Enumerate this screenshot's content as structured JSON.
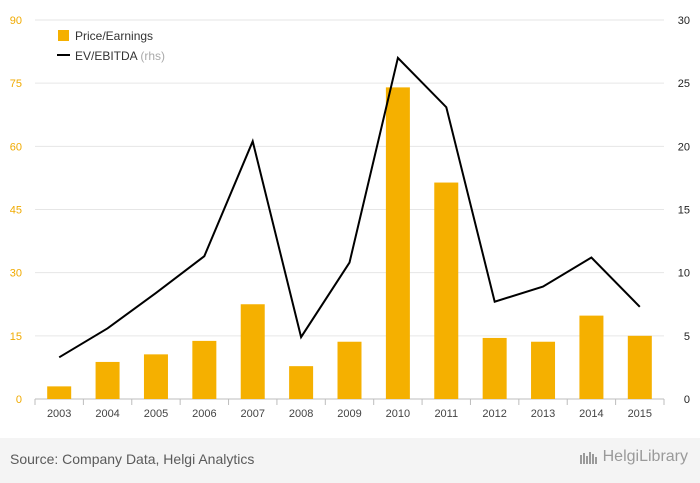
{
  "chart_data": {
    "type": "bar",
    "categories": [
      "2003",
      "2004",
      "2005",
      "2006",
      "2007",
      "2008",
      "2009",
      "2010",
      "2011",
      "2012",
      "2013",
      "2014",
      "2015"
    ],
    "series": [
      {
        "name": "Price/Earnings",
        "type": "bar",
        "axis": "left",
        "color": "#f5b000",
        "values": [
          3.0,
          8.8,
          10.6,
          13.8,
          22.5,
          7.8,
          13.6,
          74.0,
          51.4,
          14.5,
          13.6,
          19.8,
          15.0
        ]
      },
      {
        "name": "EV/EBITDA",
        "type": "line",
        "axis": "right",
        "color": "#000000",
        "values": [
          3.3,
          5.6,
          8.4,
          11.3,
          20.4,
          4.9,
          10.8,
          27.0,
          23.1,
          7.7,
          8.9,
          11.2,
          7.3
        ]
      }
    ],
    "legend_suffix": "(rhs)",
    "ylim_left": [
      0,
      90
    ],
    "ylim_right": [
      0,
      30
    ],
    "yticks_left": [
      "0",
      "15",
      "30",
      "45",
      "60",
      "75",
      "90"
    ],
    "yticks_right": [
      "0",
      "5",
      "10",
      "15",
      "20",
      "25",
      "30"
    ],
    "grid": "horizontal",
    "legend_position": "top-left"
  },
  "footer": {
    "source": "Source: Company Data, Helgi Analytics",
    "logo_text": "HelgiLibrary"
  }
}
